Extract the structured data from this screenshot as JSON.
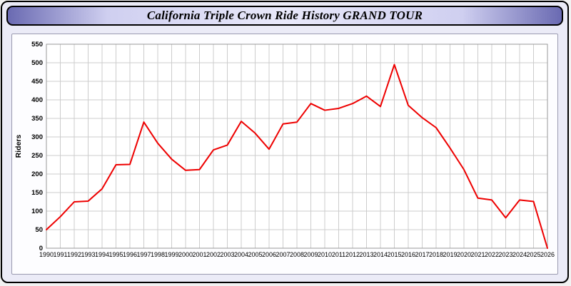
{
  "window": {
    "title": "California Triple Crown Ride History GRAND TOUR"
  },
  "chart_data": {
    "type": "line",
    "title": "California Triple Crown Ride History GRAND TOUR",
    "xlabel": "",
    "ylabel": "Riders",
    "ylim": [
      0,
      550
    ],
    "y_tick_step": 50,
    "grid": true,
    "legend_position": "none",
    "line_color": "#ee0000",
    "x": [
      1990,
      1991,
      1992,
      1993,
      1994,
      1995,
      1996,
      1997,
      1998,
      1999,
      2000,
      2001,
      2002,
      2003,
      2004,
      2005,
      2006,
      2007,
      2008,
      2009,
      2010,
      2011,
      2012,
      2013,
      2014,
      2015,
      2016,
      2017,
      2018,
      2019,
      2020,
      2021,
      2022,
      2023,
      2024,
      2025,
      2026
    ],
    "series": [
      {
        "name": "Riders",
        "values": [
          50,
          85,
          125,
          127,
          160,
          225,
          226,
          340,
          283,
          240,
          210,
          212,
          265,
          278,
          342,
          310,
          267,
          335,
          340,
          390,
          372,
          377,
          390,
          410,
          382,
          495,
          385,
          352,
          325,
          270,
          212,
          135,
          130,
          82,
          130,
          126,
          0
        ]
      }
    ]
  },
  "colors": {
    "grid": "#cccccc",
    "plot_border": "#999999",
    "axis_text": "#000000",
    "panel_bg": "#fdfdff",
    "frame_bg": "#ebebf7"
  }
}
